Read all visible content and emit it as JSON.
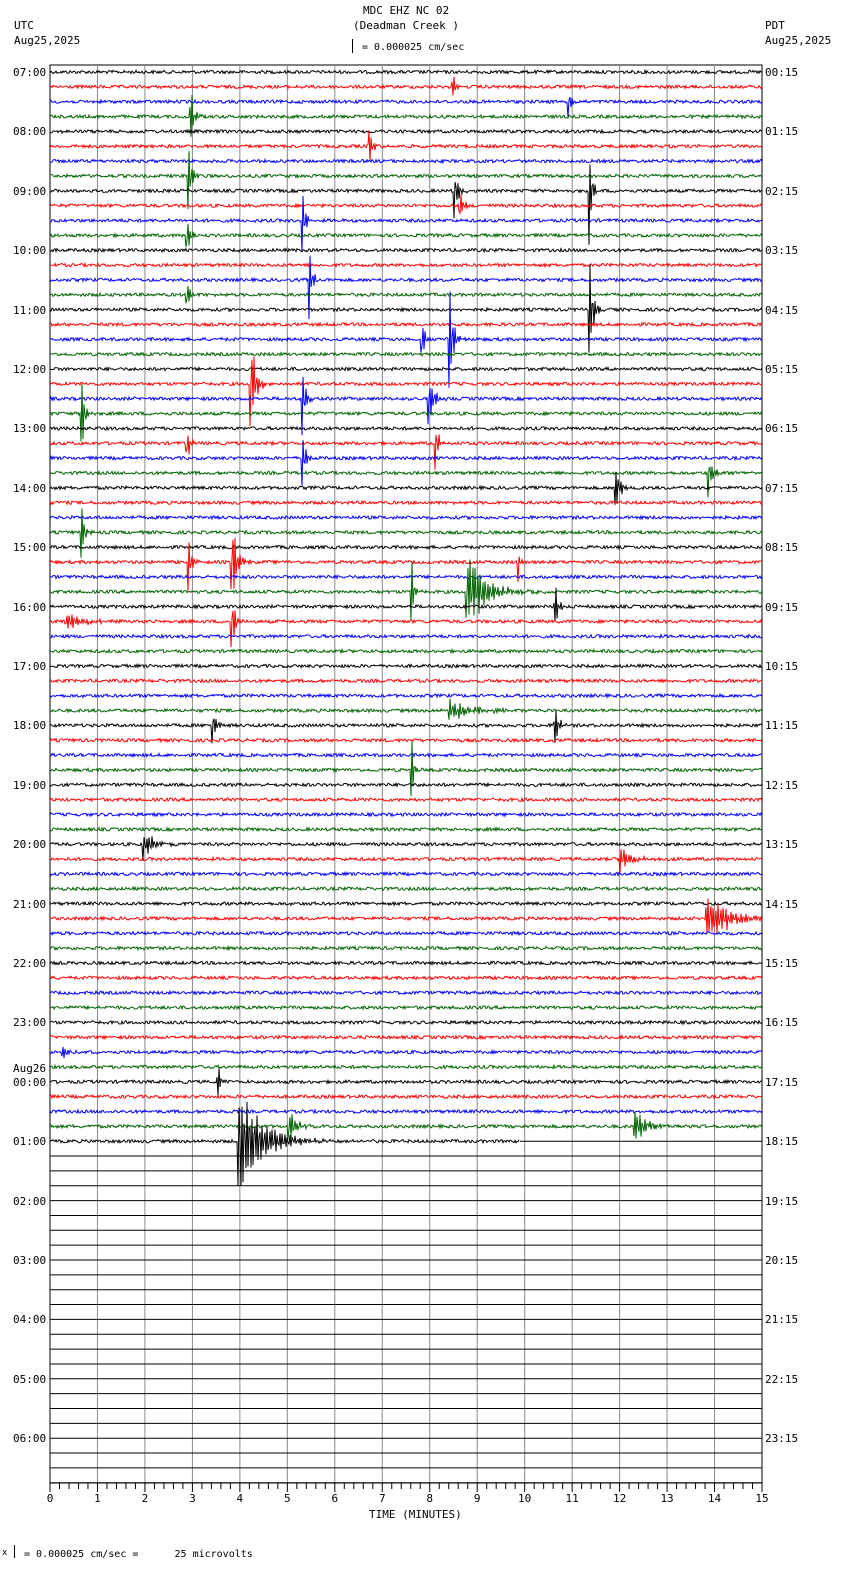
{
  "header": {
    "title": "MDC EHZ NC 02",
    "station": "(Deadman Creek )",
    "scale": "= 0.000025 cm/sec",
    "left_tz": "UTC",
    "left_date": "Aug25,2025",
    "right_tz": "PDT",
    "right_date": "Aug25,2025"
  },
  "footer": {
    "scale": "= 0.000025 cm/sec =      25 microvolts",
    "mark": "x"
  },
  "chart_data": {
    "type": "line",
    "title": "MDC EHZ NC 02 (Deadman Creek )",
    "xlabel": "TIME (MINUTES)",
    "xlim": [
      0,
      15
    ],
    "x_ticks": [
      "0",
      "1",
      "2",
      "3",
      "4",
      "5",
      "6",
      "7",
      "8",
      "9",
      "10",
      "11",
      "12",
      "13",
      "14",
      "15"
    ],
    "traces_per_hour": 4,
    "trace_colors": [
      "#000000",
      "#ff0000",
      "#0000ff",
      "#006400"
    ],
    "left_labels": [
      "07:00",
      "08:00",
      "09:00",
      "10:00",
      "11:00",
      "12:00",
      "13:00",
      "14:00",
      "15:00",
      "16:00",
      "17:00",
      "18:00",
      "19:00",
      "20:00",
      "21:00",
      "22:00",
      "23:00",
      "00:00",
      "01:00",
      "02:00",
      "03:00",
      "04:00",
      "05:00",
      "06:00"
    ],
    "date_change_label": "Aug26",
    "right_labels": [
      "00:15",
      "01:15",
      "02:15",
      "03:15",
      "04:15",
      "05:15",
      "06:15",
      "07:15",
      "08:15",
      "09:15",
      "10:15",
      "11:15",
      "12:15",
      "13:15",
      "14:15",
      "15:15",
      "16:15",
      "17:15",
      "18:15",
      "19:15",
      "20:15",
      "21:15",
      "22:15",
      "23:15"
    ],
    "data_end": {
      "trace": 72,
      "minute": 9.9
    },
    "events": [
      {
        "trace": 3,
        "minute": 2.93,
        "amp": 45,
        "dur": 0.06
      },
      {
        "trace": 7,
        "minute": 2.9,
        "amp": 40,
        "dur": 0.06
      },
      {
        "trace": 11,
        "minute": 2.85,
        "amp": 40,
        "dur": 0.06
      },
      {
        "trace": 15,
        "minute": 2.85,
        "amp": 25,
        "dur": 0.06
      },
      {
        "trace": 2,
        "minute": 10.9,
        "amp": 25,
        "dur": 0.05
      },
      {
        "trace": 1,
        "minute": 8.45,
        "amp": 30,
        "dur": 0.05
      },
      {
        "trace": 8,
        "minute": 8.5,
        "amp": 30,
        "dur": 0.08
      },
      {
        "trace": 8,
        "minute": 11.35,
        "amp": 60,
        "dur": 0.05
      },
      {
        "trace": 16,
        "minute": 11.35,
        "amp": 50,
        "dur": 0.08
      },
      {
        "trace": 5,
        "minute": 6.7,
        "amp": 30,
        "dur": 0.06
      },
      {
        "trace": 9,
        "minute": 8.6,
        "amp": 30,
        "dur": 0.06
      },
      {
        "trace": 10,
        "minute": 5.3,
        "amp": 50,
        "dur": 0.06
      },
      {
        "trace": 14,
        "minute": 5.45,
        "amp": 40,
        "dur": 0.06
      },
      {
        "trace": 22,
        "minute": 5.3,
        "amp": 50,
        "dur": 0.06
      },
      {
        "trace": 26,
        "minute": 5.3,
        "amp": 40,
        "dur": 0.06
      },
      {
        "trace": 18,
        "minute": 7.8,
        "amp": 50,
        "dur": 0.06
      },
      {
        "trace": 18,
        "minute": 8.4,
        "amp": 55,
        "dur": 0.08
      },
      {
        "trace": 22,
        "minute": 7.95,
        "amp": 40,
        "dur": 0.1
      },
      {
        "trace": 21,
        "minute": 4.2,
        "amp": 60,
        "dur": 0.1
      },
      {
        "trace": 25,
        "minute": 8.1,
        "amp": 35,
        "dur": 0.06
      },
      {
        "trace": 23,
        "minute": 0.65,
        "amp": 60,
        "dur": 0.05
      },
      {
        "trace": 31,
        "minute": 0.65,
        "amp": 40,
        "dur": 0.06
      },
      {
        "trace": 25,
        "minute": 2.85,
        "amp": 40,
        "dur": 0.05
      },
      {
        "trace": 33,
        "minute": 2.9,
        "amp": 40,
        "dur": 0.05
      },
      {
        "trace": 33,
        "minute": 3.8,
        "amp": 60,
        "dur": 0.1
      },
      {
        "trace": 37,
        "minute": 3.8,
        "amp": 50,
        "dur": 0.06
      },
      {
        "trace": 27,
        "minute": 13.85,
        "amp": 30,
        "dur": 0.08
      },
      {
        "trace": 28,
        "minute": 11.9,
        "amp": 30,
        "dur": 0.08
      },
      {
        "trace": 33,
        "minute": 9.85,
        "amp": 20,
        "dur": 0.05
      },
      {
        "trace": 35,
        "minute": 7.6,
        "amp": 45,
        "dur": 0.05
      },
      {
        "trace": 47,
        "minute": 7.6,
        "amp": 40,
        "dur": 0.05
      },
      {
        "trace": 35,
        "minute": 8.75,
        "amp": 40,
        "dur": 0.35
      },
      {
        "trace": 37,
        "minute": 0.3,
        "amp": 8,
        "dur": 0.4
      },
      {
        "trace": 36,
        "minute": 10.6,
        "amp": 50,
        "dur": 0.06
      },
      {
        "trace": 44,
        "minute": 10.6,
        "amp": 50,
        "dur": 0.06
      },
      {
        "trace": 44,
        "minute": 3.4,
        "amp": 30,
        "dur": 0.06
      },
      {
        "trace": 43,
        "minute": 8.4,
        "amp": 10,
        "dur": 0.4
      },
      {
        "trace": 52,
        "minute": 1.95,
        "amp": 15,
        "dur": 0.2
      },
      {
        "trace": 53,
        "minute": 12.0,
        "amp": 15,
        "dur": 0.2
      },
      {
        "trace": 57,
        "minute": 13.8,
        "amp": 25,
        "dur": 0.45
      },
      {
        "trace": 66,
        "minute": 0.25,
        "amp": 8,
        "dur": 0.1
      },
      {
        "trace": 68,
        "minute": 3.5,
        "amp": 30,
        "dur": 0.06
      },
      {
        "trace": 72,
        "minute": 3.95,
        "amp": 60,
        "dur": 0.45
      },
      {
        "trace": 71,
        "minute": 5.0,
        "amp": 20,
        "dur": 0.15
      },
      {
        "trace": 71,
        "minute": 12.3,
        "amp": 15,
        "dur": 0.25
      }
    ]
  }
}
